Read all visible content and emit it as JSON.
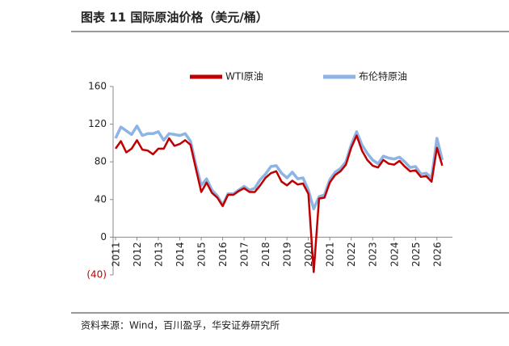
{
  "chart_data": {
    "type": "line",
    "title": "图表 11 国际原油价格（美元/桶）",
    "source": "资料来源：Wind，百川盈孚，华安证券研究所",
    "categories": [
      "2011",
      null,
      null,
      null,
      "2012",
      null,
      null,
      null,
      "2013",
      null,
      null,
      null,
      "2014",
      null,
      null,
      null,
      "2015",
      null,
      null,
      null,
      "2016",
      null,
      null,
      null,
      "2017",
      null,
      null,
      null,
      "2018",
      null,
      null,
      null,
      "2019",
      null,
      null,
      null,
      "2020",
      null,
      null,
      null,
      "2021",
      null,
      null,
      null,
      "2022",
      null,
      null,
      null,
      "2023",
      null,
      null,
      null,
      "2024",
      null,
      null,
      null,
      "2025",
      null,
      null,
      null,
      "2026",
      null
    ],
    "series": [
      {
        "name": "布伦特原油",
        "color": "#8eb4e3",
        "values": [
          105,
          117,
          113,
          109,
          118,
          108,
          110,
          110,
          112,
          103,
          110,
          109,
          108,
          110,
          102,
          77,
          55,
          62,
          50,
          44,
          34,
          46,
          46,
          50,
          54,
          50,
          52,
          61,
          67,
          75,
          76,
          68,
          63,
          69,
          62,
          63,
          50,
          30,
          43,
          45,
          61,
          69,
          73,
          80,
          98,
          112,
          98,
          89,
          82,
          78,
          86,
          84,
          83,
          85,
          80,
          74,
          75,
          67,
          68,
          63,
          105,
          82
        ]
      },
      {
        "name": "WTI原油",
        "color": "#c00000",
        "values": [
          94,
          102,
          90,
          94,
          103,
          93,
          92,
          88,
          94,
          94,
          105,
          97,
          99,
          103,
          98,
          73,
          48,
          58,
          47,
          42,
          33,
          45,
          45,
          49,
          52,
          48,
          48,
          55,
          63,
          68,
          70,
          59,
          55,
          60,
          56,
          57,
          46,
          -37,
          41,
          42,
          58,
          66,
          70,
          77,
          95,
          108,
          92,
          82,
          76,
          74,
          82,
          78,
          77,
          81,
          75,
          70,
          71,
          64,
          65,
          59,
          95,
          76
        ]
      }
    ],
    "ylim": [
      -40,
      160
    ],
    "yticks": [
      {
        "value": -40,
        "label": "(40)"
      },
      0,
      40,
      80,
      120,
      160
    ]
  }
}
